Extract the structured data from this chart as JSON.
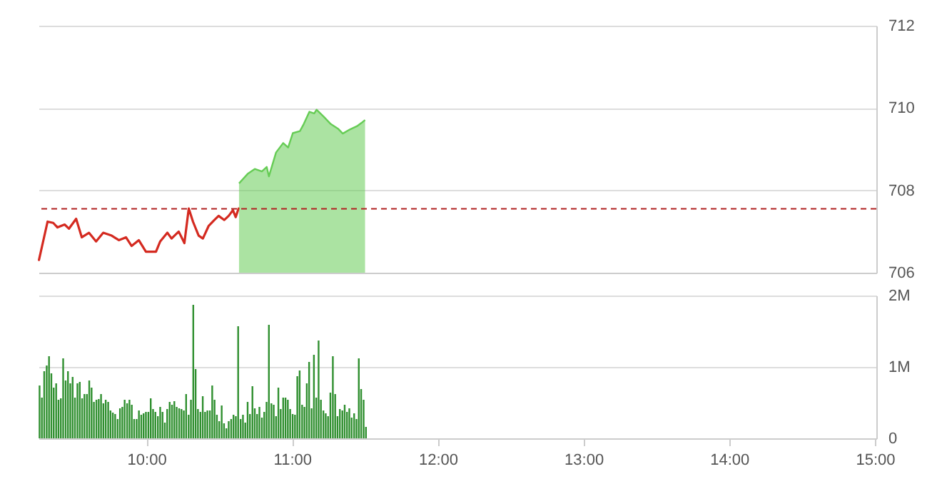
{
  "chart_data": [
    {
      "type": "line",
      "xlim": [
        9.26,
        15.01
      ],
      "ylim": [
        706,
        712
      ],
      "yticks": [
        706,
        708,
        710,
        712
      ],
      "tick_labels": "y",
      "grid": "y",
      "series": [
        {
          "type": "line",
          "color": "#d42a20",
          "x": [
            9.263,
            9.322,
            9.361,
            9.39,
            9.439,
            9.469,
            9.518,
            9.557,
            9.606,
            9.655,
            9.704,
            9.762,
            9.811,
            9.86,
            9.899,
            9.948,
            9.997,
            10.066,
            10.095,
            10.144,
            10.173,
            10.222,
            10.261,
            10.291,
            10.32,
            10.359,
            10.388,
            10.428,
            10.467,
            10.496,
            10.535,
            10.565,
            10.594,
            10.613,
            10.633
          ],
          "values": [
            706.31,
            707.24,
            707.21,
            707.1,
            707.17,
            707.07,
            707.31,
            706.86,
            706.97,
            706.76,
            706.97,
            706.9,
            706.79,
            706.86,
            706.65,
            706.79,
            706.51,
            706.51,
            706.76,
            706.97,
            706.83,
            707.0,
            706.72,
            707.56,
            707.24,
            706.9,
            706.83,
            707.14,
            707.28,
            707.38,
            707.28,
            707.38,
            707.52,
            707.35,
            707.56
          ]
        },
        {
          "type": "area",
          "color": "#66cc55",
          "x": [
            10.636,
            10.695,
            10.744,
            10.793,
            10.826,
            10.841,
            10.89,
            10.939,
            10.973,
            11.005,
            11.054,
            11.08,
            11.119,
            11.152,
            11.168,
            11.217,
            11.266,
            11.315,
            11.348,
            11.397,
            11.446,
            11.477,
            11.501
          ],
          "values": [
            708.17,
            708.4,
            708.52,
            708.46,
            708.57,
            708.34,
            708.92,
            709.15,
            709.04,
            709.39,
            709.44,
            709.61,
            709.91,
            709.87,
            709.96,
            709.79,
            709.61,
            709.5,
            709.38,
            709.48,
            709.56,
            709.64,
            709.71
          ]
        }
      ],
      "ref_lines": [
        {
          "axis": "y",
          "value": 707.55,
          "color": "#b22222",
          "line_style": "dashed"
        }
      ]
    },
    {
      "type": "bar",
      "xlim": [
        9.26,
        15.01
      ],
      "xticks": [
        {
          "value": 10,
          "label": "10:00"
        },
        {
          "value": 11,
          "label": "11:00"
        },
        {
          "value": 12,
          "label": "12:00"
        },
        {
          "value": 13,
          "label": "13:00"
        },
        {
          "value": 14,
          "label": "14:00"
        },
        {
          "value": 15,
          "label": "15:00"
        }
      ],
      "ylim": [
        0,
        2
      ],
      "yticks": [
        0,
        {
          "value": 1,
          "label": "1M"
        },
        {
          "value": 2,
          "label": "2M"
        }
      ],
      "grid": "y",
      "color": "#2f8f2f",
      "x": [
        9.267,
        9.283,
        9.299,
        9.316,
        9.332,
        9.348,
        9.364,
        9.381,
        9.397,
        9.413,
        9.429,
        9.446,
        9.462,
        9.478,
        9.494,
        9.51,
        9.527,
        9.543,
        9.559,
        9.575,
        9.592,
        9.608,
        9.624,
        9.64,
        9.657,
        9.673,
        9.689,
        9.705,
        9.721,
        9.738,
        9.754,
        9.77,
        9.786,
        9.803,
        9.819,
        9.835,
        9.851,
        9.868,
        9.884,
        9.9,
        9.916,
        9.933,
        9.949,
        9.965,
        9.981,
        9.997,
        10.014,
        10.03,
        10.046,
        10.062,
        10.079,
        10.095,
        10.111,
        10.127,
        10.143,
        10.16,
        10.176,
        10.192,
        10.208,
        10.225,
        10.241,
        10.257,
        10.273,
        10.29,
        10.306,
        10.322,
        10.338,
        10.354,
        10.371,
        10.387,
        10.403,
        10.419,
        10.436,
        10.452,
        10.468,
        10.484,
        10.5,
        10.517,
        10.533,
        10.549,
        10.565,
        10.582,
        10.598,
        10.614,
        10.63,
        10.647,
        10.663,
        10.679,
        10.695,
        10.711,
        10.728,
        10.744,
        10.76,
        10.776,
        10.793,
        10.809,
        10.825,
        10.841,
        10.858,
        10.874,
        10.89,
        10.906,
        10.922,
        10.939,
        10.955,
        10.971,
        10.987,
        11.004,
        11.02,
        11.036,
        11.052,
        11.069,
        11.085,
        11.101,
        11.117,
        11.134,
        11.15,
        11.166,
        11.182,
        11.198,
        11.215,
        11.231,
        11.247,
        11.263,
        11.28,
        11.296,
        11.312,
        11.328,
        11.345,
        11.361,
        11.377,
        11.393,
        11.409,
        11.426,
        11.442,
        11.458,
        11.474,
        11.491,
        11.507
      ],
      "values": [
        0.74,
        0.57,
        0.94,
        1.02,
        1.15,
        0.91,
        0.71,
        0.77,
        0.54,
        0.56,
        1.12,
        0.81,
        0.94,
        0.77,
        0.86,
        0.57,
        0.77,
        0.79,
        0.56,
        0.62,
        0.62,
        0.81,
        0.71,
        0.51,
        0.54,
        0.55,
        0.62,
        0.49,
        0.54,
        0.51,
        0.39,
        0.36,
        0.34,
        0.27,
        0.42,
        0.44,
        0.54,
        0.49,
        0.54,
        0.47,
        0.27,
        0.27,
        0.39,
        0.33,
        0.35,
        0.37,
        0.37,
        0.56,
        0.41,
        0.37,
        0.31,
        0.44,
        0.37,
        0.22,
        0.41,
        0.51,
        0.47,
        0.52,
        0.44,
        0.42,
        0.41,
        0.39,
        0.62,
        0.33,
        0.54,
        1.87,
        0.97,
        0.41,
        0.37,
        0.59,
        0.37,
        0.39,
        0.39,
        0.74,
        0.54,
        0.33,
        0.24,
        0.46,
        0.21,
        0.14,
        0.24,
        0.27,
        0.33,
        0.31,
        1.57,
        0.27,
        0.33,
        0.22,
        0.51,
        0.34,
        0.73,
        0.42,
        0.34,
        0.44,
        0.29,
        0.37,
        0.51,
        1.59,
        0.49,
        0.47,
        0.31,
        0.71,
        0.41,
        0.57,
        0.57,
        0.54,
        0.41,
        0.34,
        0.33,
        0.87,
        0.95,
        0.47,
        0.44,
        0.77,
        1.07,
        0.42,
        1.17,
        0.57,
        1.37,
        0.54,
        0.39,
        0.35,
        0.31,
        0.64,
        1.15,
        0.62,
        0.31,
        0.41,
        0.39,
        0.47,
        0.37,
        0.42,
        0.29,
        0.35,
        0.27,
        1.12,
        0.69,
        0.54,
        0.16
      ]
    }
  ]
}
